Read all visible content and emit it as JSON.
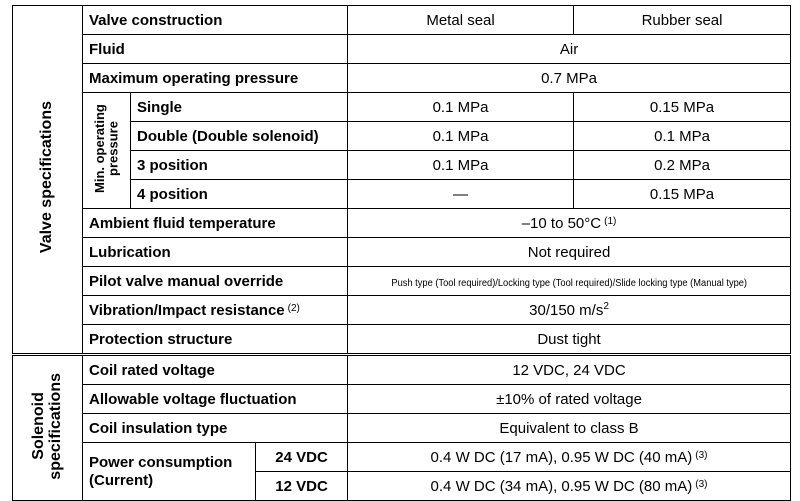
{
  "valve": {
    "title": "Valve specifications",
    "header": {
      "label": "Valve construction",
      "columns": [
        "Metal seal",
        "Rubber seal"
      ]
    },
    "fluid": {
      "label": "Fluid",
      "value": "Air"
    },
    "max_pressure": {
      "label": "Maximum operating pressure",
      "value": "0.7 MPa"
    },
    "min_pressure": {
      "label": "Min. operating pressure",
      "rows": [
        {
          "label": "Single",
          "values": [
            "0.1 MPa",
            "0.15 MPa"
          ]
        },
        {
          "label": "Double (Double solenoid)",
          "values": [
            "0.1 MPa",
            "0.1 MPa"
          ]
        },
        {
          "label": "3 position",
          "values": [
            "0.1 MPa",
            "0.2 MPa"
          ]
        },
        {
          "label": "4 position",
          "values": [
            "—",
            "0.15 MPa"
          ]
        }
      ]
    },
    "temperature": {
      "label": "Ambient fluid temperature",
      "value": "–10 to 50°C",
      "note": "(1)"
    },
    "lubrication": {
      "label": "Lubrication",
      "value": "Not required"
    },
    "override": {
      "label": "Pilot valve manual override",
      "value": "Push type (Tool required)/Locking type (Tool required)/Slide locking type (Manual type)"
    },
    "vibration": {
      "label": "Vibration/Impact resistance",
      "label_note": "(2)",
      "value": "30/150 m/s",
      "value_sup": "2"
    },
    "protection": {
      "label": "Protection structure",
      "value": "Dust tight"
    }
  },
  "solenoid": {
    "title": [
      "Solenoid",
      "specifications"
    ],
    "voltage": {
      "label": "Coil rated voltage",
      "value": "12 VDC, 24 VDC"
    },
    "fluctuation": {
      "label": "Allowable voltage fluctuation",
      "value": "±10% of rated voltage"
    },
    "insulation": {
      "label": "Coil insulation type",
      "value": "Equivalent to class B"
    },
    "power": {
      "label": [
        "Power consumption",
        "(Current)"
      ],
      "rows": [
        {
          "voltage": "24 VDC",
          "value": "0.4 W DC (17 mA), 0.95 W DC (40 mA)",
          "note": "(3)"
        },
        {
          "voltage": "12 VDC",
          "value": "0.4 W DC (34 mA), 0.95 W DC (80 mA)",
          "note": "(3)"
        }
      ]
    }
  }
}
